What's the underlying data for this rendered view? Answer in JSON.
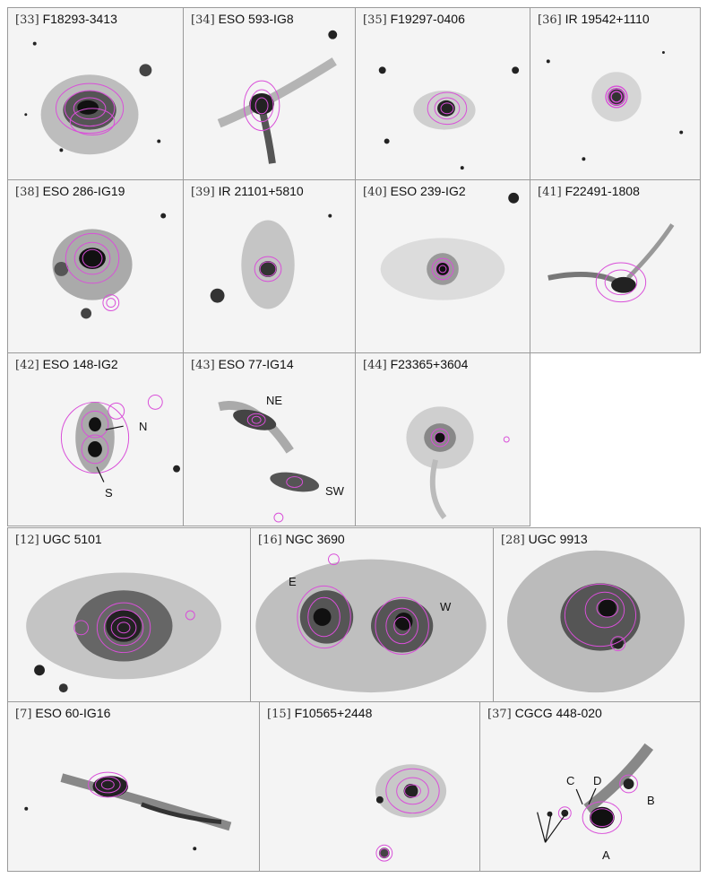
{
  "panels": [
    {
      "num": "[33]",
      "name": "F18293-3413"
    },
    {
      "num": "[34]",
      "name": "ESO 593-IG8"
    },
    {
      "num": "[35]",
      "name": "F19297-0406"
    },
    {
      "num": "[36]",
      "name": "IR 19542+1110"
    },
    {
      "num": "[38]",
      "name": "ESO 286-IG19"
    },
    {
      "num": "[39]",
      "name": "IR 21101+5810"
    },
    {
      "num": "[40]",
      "name": "ESO 239-IG2"
    },
    {
      "num": "[41]",
      "name": "F22491-1808"
    },
    {
      "num": "[42]",
      "name": "ESO 148-IG2"
    },
    {
      "num": "[43]",
      "name": "ESO 77-IG14"
    },
    {
      "num": "[44]",
      "name": "F23365+3604"
    },
    {
      "num": "[12]",
      "name": "UGC 5101"
    },
    {
      "num": "[16]",
      "name": "NGC 3690"
    },
    {
      "num": "[28]",
      "name": "UGC 9913"
    },
    {
      "num": "[7]",
      "name": "ESO 60-IG16"
    },
    {
      "num": "[15]",
      "name": "F10565+2448"
    },
    {
      "num": "[37]",
      "name": "CGCG 448-020"
    }
  ],
  "annotations": {
    "p42_n": "N",
    "p42_s": "S",
    "p43_ne": "NE",
    "p43_sw": "SW",
    "p16_e": "E",
    "p16_w": "W",
    "p37_c": "C",
    "p37_d": "D",
    "p37_b": "B",
    "p37_a": "A"
  },
  "colors": {
    "contour": "#d94fd9",
    "galaxy": "#1a1a1a",
    "background": "#f4f4f4"
  }
}
